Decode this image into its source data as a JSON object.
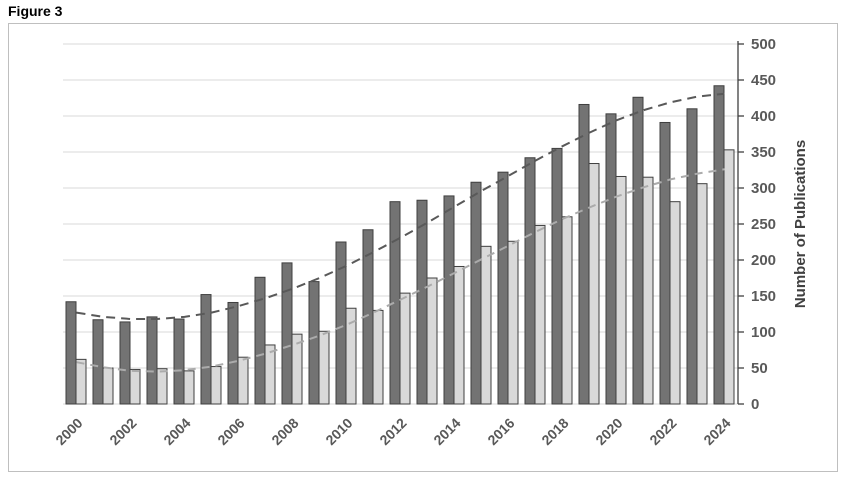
{
  "figure_label": "Figure 3",
  "colors": {
    "chart_border": "#bfbfbf",
    "gridline": "#d9d9d9",
    "axis_line": "#404040",
    "tick_label": "#595959",
    "axis_title": "#404040",
    "bar_outline": "#3f3f3f"
  },
  "chart_data": {
    "type": "bar",
    "title": "Figure 3",
    "xlabel": "",
    "ylabel": "Number of Publications",
    "ylim": [
      0,
      500
    ],
    "ytick_interval": 50,
    "grid": "horizontal-major",
    "legend": "none",
    "categories": [
      "2000",
      "2001",
      "2002",
      "2003",
      "2004",
      "2005",
      "2006",
      "2007",
      "2008",
      "2009",
      "2010",
      "2011",
      "2012",
      "2013",
      "2014",
      "2015",
      "2016",
      "2017",
      "2018",
      "2019",
      "2020",
      "2021",
      "2022",
      "2023",
      "2024"
    ],
    "x_tick_labels": [
      "2000",
      "2002",
      "2004",
      "2006",
      "2008",
      "2010",
      "2012",
      "2014",
      "2016",
      "2018",
      "2020",
      "2022",
      "2024"
    ],
    "series": [
      {
        "name": "dark-gray-bars",
        "color": "#737373",
        "values": [
          142,
          117,
          114,
          121,
          118,
          152,
          141,
          176,
          196,
          170,
          225,
          242,
          281,
          283,
          289,
          308,
          322,
          342,
          355,
          416,
          403,
          426,
          391,
          410,
          442
        ]
      },
      {
        "name": "light-gray-bars",
        "color": "#d9d9d9",
        "values": [
          62,
          50,
          48,
          49,
          46,
          52,
          65,
          82,
          97,
          101,
          133,
          130,
          154,
          175,
          191,
          219,
          226,
          248,
          260,
          334,
          316,
          315,
          281,
          306,
          353
        ]
      }
    ],
    "trendlines": [
      {
        "series": "dark-gray-bars",
        "color": "#595959",
        "style": "dashed",
        "values": [
          127,
          121,
          118,
          118,
          121,
          127,
          136,
          147,
          160,
          175,
          192,
          211,
          231,
          252,
          274,
          296,
          317,
          338,
          358,
          377,
          394,
          408,
          419,
          427,
          431
        ]
      },
      {
        "series": "light-gray-bars",
        "color": "#ababab",
        "style": "dashed",
        "values": [
          58,
          51,
          46,
          45,
          47,
          52,
          60,
          70,
          82,
          95,
          110,
          127,
          145,
          163,
          182,
          201,
          220,
          239,
          257,
          273,
          288,
          301,
          312,
          320,
          326
        ]
      }
    ]
  }
}
